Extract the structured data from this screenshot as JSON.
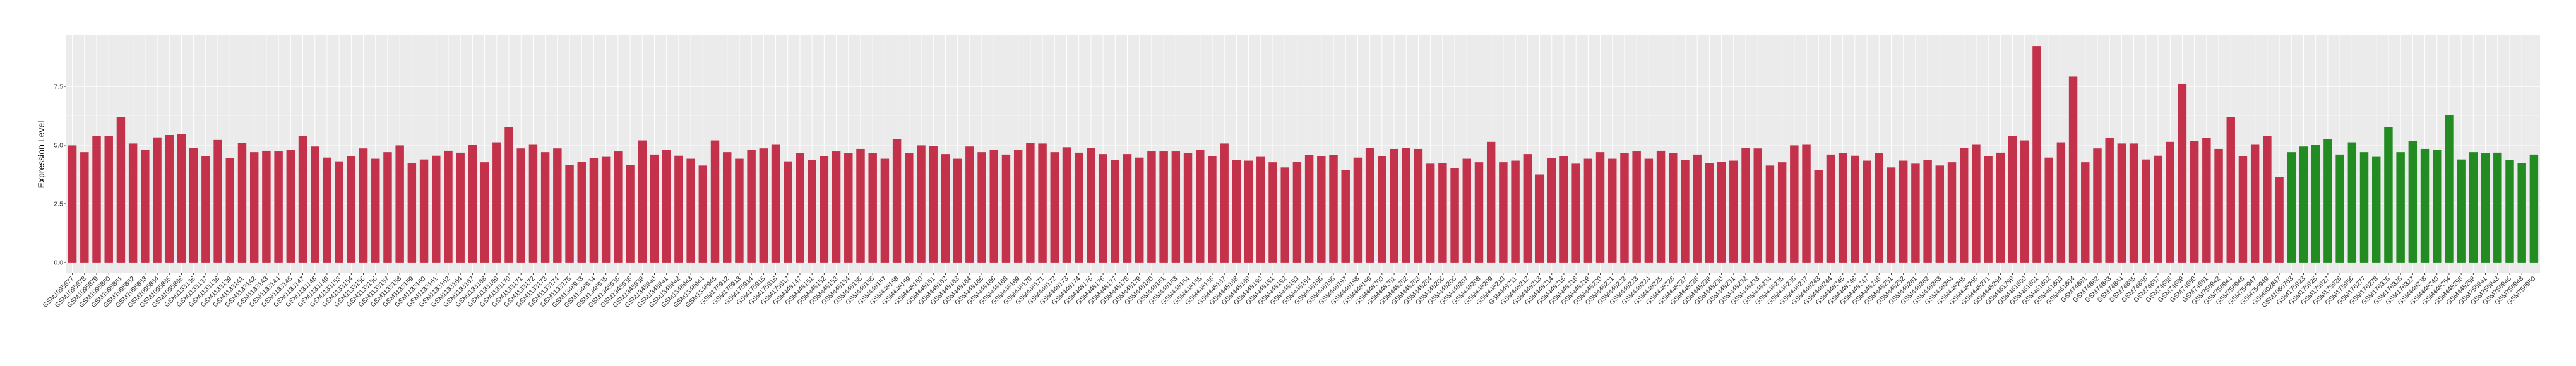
{
  "chart_data": {
    "type": "bar",
    "title": "",
    "xlabel": "",
    "ylabel": "Expression Level",
    "ylim": [
      -0.46,
      9.68
    ],
    "yticks": [
      0.0,
      2.5,
      5.0,
      7.5
    ],
    "ytick_labels": [
      "0.0",
      "2.5",
      "5.0",
      "7.5"
    ],
    "grid": true,
    "legend": "none",
    "colors": {
      "group1": "#C3314A",
      "group2": "#228B22",
      "panel": "#EBEBEB",
      "grid": "#FFFFFF"
    },
    "categories": [
      "GSM1095877",
      "GSM1095878",
      "GSM1095879",
      "GSM1095880",
      "GSM1095881",
      "GSM1095882",
      "GSM1095883",
      "GSM1095884",
      "GSM1095885",
      "GSM1095886",
      "GSM1133136",
      "GSM1133137",
      "GSM1133138",
      "GSM1133139",
      "GSM1133141",
      "GSM1133142",
      "GSM1133143",
      "GSM1133144",
      "GSM1133146",
      "GSM1133147",
      "GSM1133148",
      "GSM1133149",
      "GSM1133153",
      "GSM1133154",
      "GSM1133155",
      "GSM1133156",
      "GSM1133157",
      "GSM1133158",
      "GSM1133159",
      "GSM1133160",
      "GSM1133161",
      "GSM1133162",
      "GSM1133164",
      "GSM1133167",
      "GSM1133168",
      "GSM1133169",
      "GSM1133170",
      "GSM1133171",
      "GSM1133172",
      "GSM1133173",
      "GSM1133174",
      "GSM1133175",
      "GSM1348933",
      "GSM1348934",
      "GSM1348935",
      "GSM1348936",
      "GSM1348938",
      "GSM1348939",
      "GSM1348940",
      "GSM1348941",
      "GSM1348942",
      "GSM1348943",
      "GSM1348944",
      "GSM1348945",
      "GSM175912",
      "GSM175913",
      "GSM175914",
      "GSM175915",
      "GSM175916",
      "GSM175917",
      "GSM449147",
      "GSM449151",
      "GSM449152",
      "GSM449153",
      "GSM449154",
      "GSM449155",
      "GSM449156",
      "GSM449157",
      "GSM449158",
      "GSM449159",
      "GSM449160",
      "GSM449161",
      "GSM449162",
      "GSM449163",
      "GSM449164",
      "GSM449165",
      "GSM449166",
      "GSM449168",
      "GSM449169",
      "GSM449170",
      "GSM449171",
      "GSM449172",
      "GSM449173",
      "GSM449174",
      "GSM449175",
      "GSM449176",
      "GSM449177",
      "GSM449178",
      "GSM449179",
      "GSM449180",
      "GSM449181",
      "GSM449183",
      "GSM449184",
      "GSM449185",
      "GSM449186",
      "GSM449187",
      "GSM449188",
      "GSM449189",
      "GSM449190",
      "GSM449191",
      "GSM449192",
      "GSM449193",
      "GSM449194",
      "GSM449195",
      "GSM449196",
      "GSM449197",
      "GSM449198",
      "GSM449199",
      "GSM449200",
      "GSM449201",
      "GSM449202",
      "GSM449203",
      "GSM449204",
      "GSM449205",
      "GSM449206",
      "GSM449207",
      "GSM449208",
      "GSM449209",
      "GSM449210",
      "GSM449211",
      "GSM449212",
      "GSM449213",
      "GSM449214",
      "GSM449215",
      "GSM449218",
      "GSM449219",
      "GSM449220",
      "GSM449221",
      "GSM449222",
      "GSM449223",
      "GSM449224",
      "GSM449225",
      "GSM449226",
      "GSM449227",
      "GSM449228",
      "GSM449229",
      "GSM449230",
      "GSM449231",
      "GSM449232",
      "GSM449233",
      "GSM449234",
      "GSM449235",
      "GSM449236",
      "GSM449237",
      "GSM449243",
      "GSM449244",
      "GSM449245",
      "GSM449246",
      "GSM449247",
      "GSM449248",
      "GSM449251",
      "GSM449252",
      "GSM449261",
      "GSM449262",
      "GSM449263",
      "GSM449264",
      "GSM449265",
      "GSM449266",
      "GSM449271",
      "GSM449294",
      "GSM461799",
      "GSM461800",
      "GSM461801",
      "GSM461802",
      "GSM461803",
      "GSM461804",
      "GSM74881",
      "GSM74882",
      "GSM74883",
      "GSM74884",
      "GSM74885",
      "GSM74886",
      "GSM74887",
      "GSM74888",
      "GSM74889",
      "GSM74890",
      "GSM74891",
      "GSM756942",
      "GSM756944",
      "GSM756946",
      "GSM756947",
      "GSM756949",
      "GSM802847",
      "GSM1060763",
      "GSM175923",
      "GSM175925",
      "GSM175927",
      "GSM175928",
      "GSM175955",
      "GSM176277",
      "GSM176278",
      "GSM176325",
      "GSM176326",
      "GSM176327",
      "GSM449238",
      "GSM449240",
      "GSM449254",
      "GSM449298",
      "GSM449299",
      "GSM756941",
      "GSM756943",
      "GSM756945",
      "GSM756948",
      "GSM756950"
    ],
    "values": [
      4.99,
      4.7,
      5.38,
      5.4,
      6.19,
      5.07,
      4.81,
      5.33,
      5.43,
      5.48,
      4.88,
      4.53,
      5.22,
      4.45,
      5.1,
      4.7,
      4.76,
      4.73,
      4.81,
      5.38,
      4.94,
      4.47,
      4.31,
      4.53,
      4.86,
      4.42,
      4.7,
      4.99,
      4.24,
      4.39,
      4.55,
      4.76,
      4.68,
      5.02,
      4.27,
      5.12,
      5.77,
      4.86,
      5.04,
      4.7,
      4.86,
      4.16,
      4.29,
      4.45,
      4.5,
      4.73,
      4.16,
      5.2,
      4.6,
      4.81,
      4.55,
      4.42,
      4.13,
      5.2,
      4.7,
      4.42,
      4.81,
      4.86,
      5.04,
      4.31,
      4.65,
      4.36,
      4.53,
      4.73,
      4.65,
      4.84,
      4.65,
      4.42,
      5.25,
      4.65,
      4.99,
      4.96,
      4.62,
      4.42,
      4.94,
      4.7,
      4.79,
      4.6,
      4.81,
      5.1,
      5.07,
      4.7,
      4.91,
      4.68,
      4.88,
      4.62,
      4.36,
      4.62,
      4.47,
      4.73,
      4.73,
      4.73,
      4.65,
      4.79,
      4.53,
      5.07,
      4.36,
      4.34,
      4.5,
      4.27,
      4.05,
      4.29,
      4.58,
      4.53,
      4.58,
      3.93,
      4.47,
      4.88,
      4.53,
      4.84,
      4.88,
      4.84,
      4.21,
      4.24,
      4.03,
      4.42,
      4.27,
      5.14,
      4.27,
      4.34,
      4.62,
      3.75,
      4.45,
      4.53,
      4.21,
      4.42,
      4.7,
      4.42,
      4.65,
      4.73,
      4.42,
      4.76,
      4.65,
      4.36,
      4.6,
      4.24,
      4.29,
      4.34,
      4.88,
      4.86,
      4.13,
      4.27,
      4.99,
      5.04,
      3.95,
      4.6,
      4.65,
      4.55,
      4.34,
      4.65,
      4.05,
      4.34,
      4.21,
      4.36,
      4.13,
      4.27,
      4.88,
      5.04,
      4.53,
      4.68,
      5.4,
      5.2,
      9.22,
      4.47,
      5.12,
      7.92,
      4.27,
      4.86,
      5.3,
      5.07,
      5.07,
      4.39,
      4.55,
      5.14,
      7.61,
      5.17,
      5.3,
      4.84,
      6.19,
      4.53,
      5.04,
      5.38,
      3.64,
      4.7,
      4.94,
      5.02,
      5.25,
      4.6,
      5.12,
      4.7,
      4.5,
      5.77,
      4.7,
      5.17,
      4.84,
      4.79,
      6.29,
      4.39,
      4.7,
      4.65,
      4.68,
      4.36,
      4.24,
      4.6
    ],
    "group_split_after": "GSM802847"
  }
}
